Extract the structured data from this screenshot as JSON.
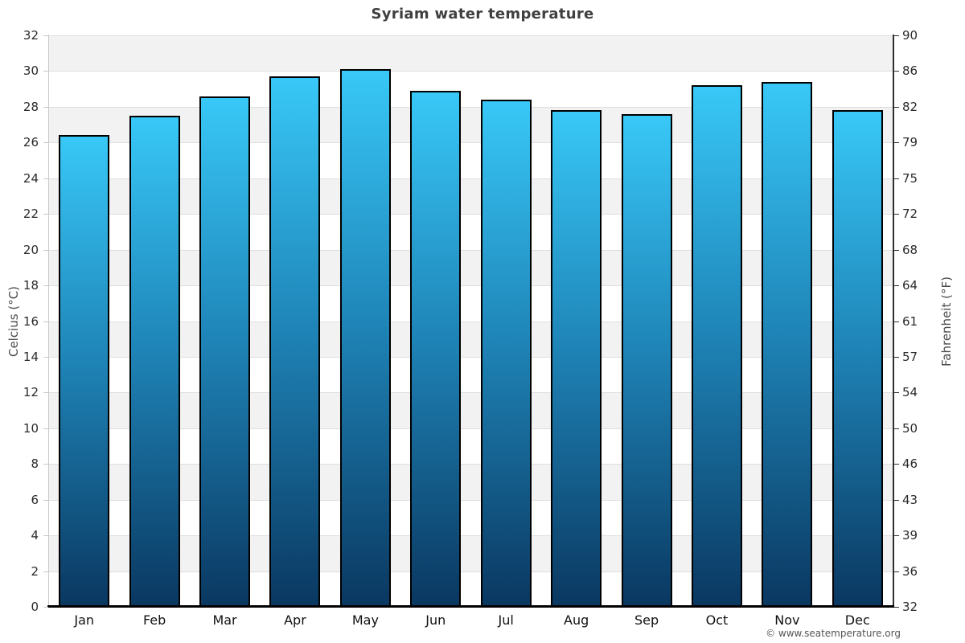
{
  "title": "Syriam water temperature",
  "copyright": "© www.seatemperature.org",
  "chart_data": {
    "type": "bar",
    "title": "Syriam water temperature",
    "categories": [
      "Jan",
      "Feb",
      "Mar",
      "Apr",
      "May",
      "Jun",
      "Jul",
      "Aug",
      "Sep",
      "Oct",
      "Nov",
      "Dec"
    ],
    "values": [
      26.4,
      27.5,
      28.6,
      29.7,
      30.1,
      28.9,
      28.4,
      27.8,
      27.6,
      29.2,
      29.4,
      27.8
    ],
    "unit": "°C",
    "xlabel": "",
    "ylabel_left": "Celcius (°C)",
    "ylabel_right": "Fahrenheit (°F)",
    "ylim_left": [
      0,
      32
    ],
    "ylim_right": [
      32,
      90
    ],
    "yticks_left": [
      32,
      30,
      28,
      26,
      24,
      22,
      20,
      18,
      16,
      14,
      12,
      10,
      8,
      6,
      4,
      2,
      0
    ],
    "yticks_right": [
      90,
      86,
      82,
      79,
      75,
      72,
      68,
      64,
      61,
      57,
      54,
      50,
      46,
      43,
      39,
      36,
      32
    ],
    "legend": "none",
    "grid": "horizontal lines every 2°C with alternating shaded bands",
    "colors": {
      "bar_gradient_top": "#38c8f7",
      "bar_gradient_mid": "#1f85b8",
      "bar_gradient_bottom": "#0a3861",
      "bar_border": "#000000",
      "band_shade": "#f2f2f2",
      "gridline": "#dedede",
      "left_axis_line": "#c9c9c9",
      "right_axis_line": "#2f2f2f",
      "bottom_axis_line": "#000000",
      "title_text": "#3f3f3f",
      "tick_text": "#2b2b2b",
      "axis_title_text": "#4d4d4d",
      "copyright_text": "#555555"
    }
  }
}
